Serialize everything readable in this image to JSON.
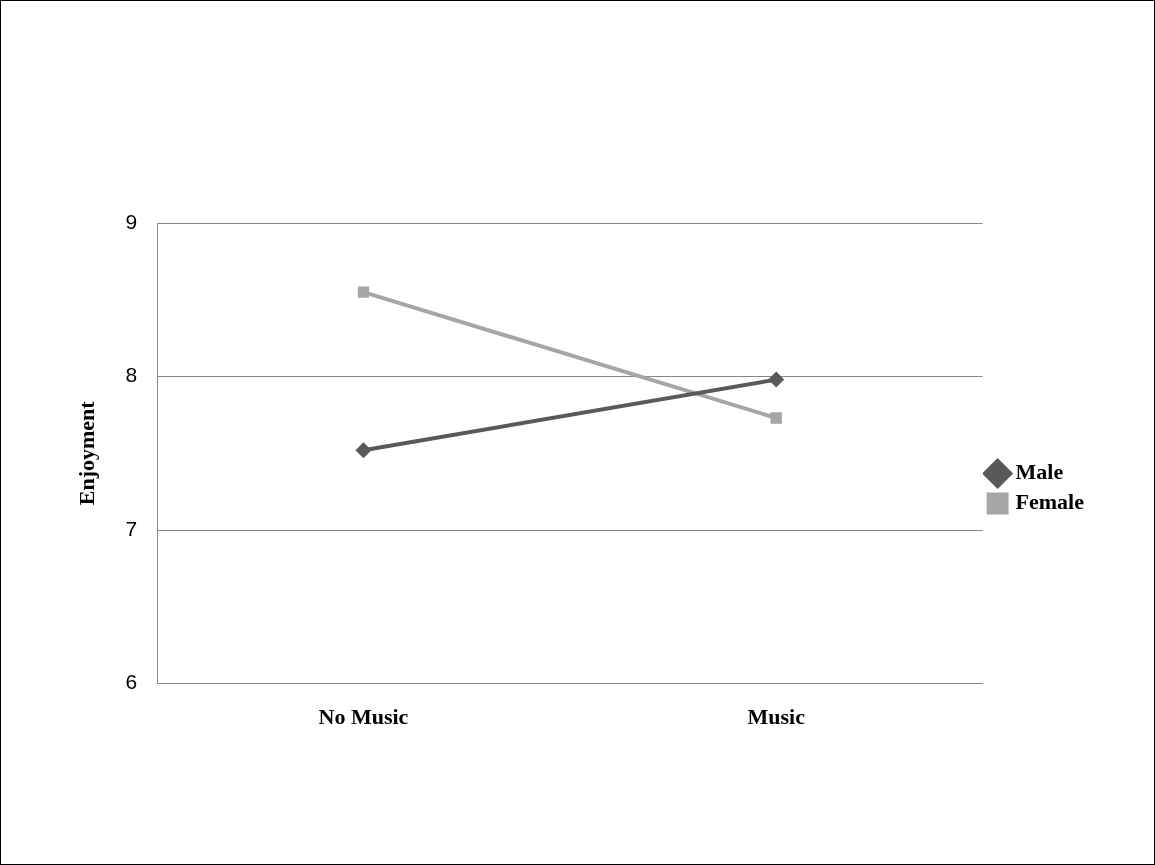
{
  "chart_data": {
    "type": "line",
    "ylabel": "Enjoyment",
    "categories": [
      "No Music",
      "Music"
    ],
    "series": [
      {
        "name": "Male",
        "color": "#595959",
        "values": [
          7.52,
          7.98
        ],
        "marker": "diamond"
      },
      {
        "name": "Female",
        "color": "#a6a6a6",
        "values": [
          8.55,
          7.73
        ],
        "marker": "square"
      }
    ],
    "ylim": [
      6,
      9
    ],
    "yticks": [
      6,
      7,
      8,
      9
    ],
    "grid": "y",
    "legend": "right",
    "line_style": "solid"
  }
}
